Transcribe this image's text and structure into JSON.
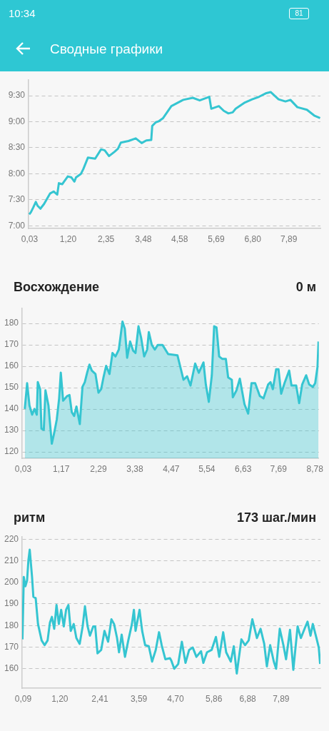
{
  "chart_data": [
    {
      "type": "line",
      "title": "Сводные графики",
      "annotations": [
        "10:34",
        "81"
      ],
      "color": "#35c5d1",
      "grid": "y",
      "x": [
        0.02,
        0.07,
        0.14,
        0.22,
        0.27,
        0.36,
        0.47,
        0.65,
        0.76,
        0.87,
        0.92,
        1.02,
        1.19,
        1.3,
        1.39,
        1.44,
        1.59,
        1.66,
        1.8,
        2.02,
        2.2,
        2.31,
        2.44,
        2.6,
        2.71,
        2.8,
        3.03,
        3.25,
        3.43,
        3.57,
        3.72,
        3.75,
        3.86,
        3.95,
        4.08,
        4.33,
        4.69,
        4.98,
        5.19,
        5.48,
        5.54,
        5.77,
        5.92,
        6.06,
        6.19,
        6.28,
        6.56,
        6.78,
        6.99,
        7.21,
        7.34,
        7.58,
        7.79,
        7.94,
        8.15,
        8.44,
        8.66,
        8.84
      ],
      "values": [
        7.22,
        7.26,
        7.35,
        7.46,
        7.39,
        7.33,
        7.42,
        7.62,
        7.66,
        7.6,
        7.82,
        7.8,
        7.95,
        7.93,
        7.85,
        7.93,
        8.0,
        8.09,
        8.31,
        8.29,
        8.47,
        8.45,
        8.34,
        8.42,
        8.48,
        8.6,
        8.63,
        8.68,
        8.59,
        8.64,
        8.65,
        8.92,
        8.99,
        9.01,
        9.07,
        9.3,
        9.42,
        9.46,
        9.41,
        9.48,
        9.25,
        9.3,
        9.21,
        9.16,
        9.18,
        9.25,
        9.37,
        9.43,
        9.48,
        9.55,
        9.57,
        9.43,
        9.39,
        9.42,
        9.28,
        9.23,
        9.12,
        9.07
      ],
      "xlim": [
        0,
        8.85
      ],
      "xticks": [
        {
          "value": 0.03,
          "label": "0,03"
        },
        {
          "value": 1.2,
          "label": "1,20"
        },
        {
          "value": 2.35,
          "label": "2,35"
        },
        {
          "value": 3.48,
          "label": "3,48"
        },
        {
          "value": 4.58,
          "label": "4,58"
        },
        {
          "value": 5.69,
          "label": "5,69"
        },
        {
          "value": 6.8,
          "label": "6,80"
        },
        {
          "value": 7.89,
          "label": "7,89"
        }
      ],
      "ylim": [
        6.95,
        9.8
      ],
      "yticks": [
        {
          "value": 7,
          "label": "7:00"
        },
        {
          "value": 7.5,
          "label": "7:30"
        },
        {
          "value": 8,
          "label": "8:00"
        },
        {
          "value": 8.5,
          "label": "8:30"
        },
        {
          "value": 9,
          "label": "9:00"
        },
        {
          "value": 9.5,
          "label": "9:30"
        }
      ]
    },
    {
      "type": "area",
      "title": "Восхождение",
      "subtitle": "0 м",
      "color": "#35c5d1",
      "grid": "y",
      "x": [
        0.08,
        0.15,
        0.22,
        0.3,
        0.37,
        0.44,
        0.47,
        0.54,
        0.58,
        0.65,
        0.7,
        0.79,
        0.89,
        0.96,
        1.04,
        1.11,
        1.16,
        1.23,
        1.35,
        1.42,
        1.49,
        1.56,
        1.63,
        1.73,
        1.81,
        1.88,
        1.95,
        2.02,
        2.09,
        2.2,
        2.29,
        2.37,
        2.44,
        2.52,
        2.62,
        2.71,
        2.8,
        2.9,
        3.01,
        3.08,
        3.15,
        3.24,
        3.33,
        3.4,
        3.49,
        3.57,
        3.66,
        3.75,
        3.8,
        3.89,
        3.98,
        4.07,
        4.21,
        4.38,
        4.66,
        4.84,
        4.95,
        5.05,
        5.19,
        5.3,
        5.44,
        5.51,
        5.6,
        5.69,
        5.76,
        5.83,
        5.91,
        6.0,
        6.11,
        6.18,
        6.29,
        6.32,
        6.43,
        6.53,
        6.67,
        6.78,
        6.88,
        6.99,
        7.13,
        7.24,
        7.38,
        7.45,
        7.52,
        7.62,
        7.69,
        7.77,
        7.87,
        8.01,
        8.08,
        8.22,
        8.31,
        8.4,
        8.52,
        8.61,
        8.72,
        8.79,
        8.86,
        8.89
      ],
      "values": [
        140.1,
        152.1,
        141.7,
        137.4,
        140.1,
        137.4,
        152.6,
        149.3,
        130.9,
        130.3,
        148.8,
        141.7,
        123.8,
        128.7,
        135.2,
        145.0,
        157.0,
        143.9,
        146.1,
        146.6,
        138.5,
        136.8,
        141.2,
        133.0,
        150.4,
        152.6,
        157.0,
        160.8,
        158.0,
        156.4,
        147.7,
        149.3,
        154.8,
        160.2,
        156.4,
        166.2,
        164.6,
        167.8,
        180.9,
        177.6,
        164.0,
        171.6,
        167.3,
        166.2,
        178.7,
        173.3,
        164.6,
        167.8,
        176.0,
        170.0,
        167.8,
        170.0,
        170.0,
        165.7,
        165.1,
        153.7,
        155.3,
        151.0,
        161.3,
        157.0,
        161.8,
        151.5,
        143.4,
        155.8,
        178.7,
        178.2,
        164.6,
        163.5,
        163.5,
        154.8,
        153.7,
        145.5,
        148.8,
        154.2,
        142.3,
        137.9,
        152.1,
        152.1,
        146.1,
        145.0,
        151.5,
        152.6,
        149.3,
        158.6,
        158.6,
        147.2,
        152.1,
        158.0,
        151.0,
        151.0,
        142.8,
        151.5,
        155.8,
        151.5,
        150.4,
        152.1,
        159.7,
        171.6
      ],
      "xlim": [
        0,
        8.9
      ],
      "xticks": [
        {
          "value": 0.03,
          "label": "0,03"
        },
        {
          "value": 1.17,
          "label": "1,17"
        },
        {
          "value": 2.29,
          "label": "2,29"
        },
        {
          "value": 3.38,
          "label": "3,38"
        },
        {
          "value": 4.47,
          "label": "4,47"
        },
        {
          "value": 5.54,
          "label": "5,54"
        },
        {
          "value": 6.63,
          "label": "6,63"
        },
        {
          "value": 7.69,
          "label": "7,69"
        },
        {
          "value": 8.78,
          "label": "8,78"
        }
      ],
      "ylim": [
        117,
        187
      ],
      "yticks": [
        120,
        130,
        140,
        150,
        160,
        170,
        180
      ]
    },
    {
      "type": "line",
      "title": "ритм",
      "subtitle": "173 шаг./мин",
      "color": "#35c5d1",
      "grid": "y",
      "x": [
        0.07,
        0.11,
        0.16,
        0.21,
        0.25,
        0.29,
        0.36,
        0.4,
        0.47,
        0.54,
        0.65,
        0.74,
        0.83,
        0.9,
        0.96,
        1.03,
        1.1,
        1.17,
        1.24,
        1.32,
        1.39,
        1.46,
        1.53,
        1.62,
        1.7,
        1.8,
        1.89,
        1.96,
        2.04,
        2.11,
        2.21,
        2.27,
        2.34,
        2.45,
        2.55,
        2.66,
        2.76,
        2.84,
        2.93,
        2.99,
        3.07,
        3.17,
        3.27,
        3.38,
        3.44,
        3.49,
        3.61,
        3.69,
        3.78,
        3.89,
        3.99,
        4.1,
        4.2,
        4.28,
        4.39,
        4.53,
        4.57,
        4.66,
        4.78,
        4.89,
        5.0,
        5.11,
        5.22,
        5.33,
        5.47,
        5.54,
        5.65,
        5.79,
        5.92,
        6.02,
        6.14,
        6.23,
        6.37,
        6.46,
        6.55,
        6.69,
        6.8,
        6.91,
        7.02,
        7.16,
        7.27,
        7.38,
        7.46,
        7.56,
        7.67,
        7.74,
        7.85,
        7.96,
        8.04,
        8.16,
        8.26,
        8.39,
        8.49,
        8.6,
        8.69,
        8.78,
        8.85,
        8.96,
        9.03,
        9.07
      ],
      "values": [
        173.6,
        202.5,
        198.2,
        200.9,
        210.2,
        215.1,
        202.5,
        193.3,
        192.7,
        180.7,
        173.1,
        170.9,
        173.1,
        181.3,
        184.0,
        178.5,
        189.5,
        180.7,
        187.3,
        179.6,
        187.3,
        189.5,
        177.5,
        180.7,
        174.2,
        171.5,
        179.6,
        188.9,
        179.6,
        175.3,
        179.6,
        179.6,
        167.1,
        168.7,
        177.5,
        172.5,
        182.9,
        180.7,
        174.2,
        167.6,
        175.8,
        165.5,
        173.1,
        180.7,
        187.3,
        177.5,
        187.3,
        177.5,
        170.9,
        170.4,
        163.3,
        168.7,
        176.9,
        170.9,
        164.4,
        164.9,
        163.8,
        160.0,
        162.2,
        172.5,
        162.7,
        168.7,
        169.8,
        165.5,
        168.1,
        162.7,
        167.6,
        168.7,
        174.7,
        165.5,
        176.9,
        167.6,
        163.3,
        170.4,
        157.8,
        173.6,
        170.9,
        173.1,
        182.9,
        174.2,
        178.5,
        171.5,
        161.1,
        170.9,
        163.3,
        160.0,
        178.5,
        170.9,
        164.4,
        178.0,
        159.5,
        179.6,
        174.2,
        178.5,
        181.8,
        175.3,
        180.7,
        174.2,
        169.8,
        162.2
      ],
      "xlim": [
        0.06,
        9.08
      ],
      "xticks": [
        {
          "value": 0.09,
          "label": "0,09"
        },
        {
          "value": 1.2,
          "label": "1,20"
        },
        {
          "value": 2.41,
          "label": "2,41"
        },
        {
          "value": 3.59,
          "label": "3,59"
        },
        {
          "value": 4.7,
          "label": "4,70"
        },
        {
          "value": 5.86,
          "label": "5,86"
        },
        {
          "value": 6.88,
          "label": "6,88"
        },
        {
          "value": 7.89,
          "label": "7,89"
        }
      ],
      "ylim": [
        151,
        221
      ],
      "yticks": [
        160,
        170,
        180,
        190,
        200,
        210,
        220
      ]
    }
  ]
}
